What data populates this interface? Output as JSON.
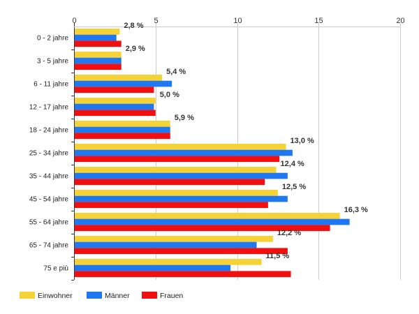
{
  "chart_data": {
    "type": "bar",
    "orientation": "horizontal",
    "categories": [
      "0 - 2 jahre",
      "3 - 5 jahre",
      "6 - 11 jahre",
      "12 - 17 jahre",
      "18 - 24 jahre",
      "25 - 34 jahre",
      "35 - 44 jahre",
      "45 - 54 jahre",
      "55 - 64 jahre",
      "65 - 74 jahre",
      "75 e più"
    ],
    "series": [
      {
        "name": "Einwohner",
        "color": "#f5d336",
        "values": [
          2.8,
          2.9,
          5.4,
          5.0,
          5.9,
          13.0,
          12.4,
          12.5,
          16.3,
          12.2,
          11.5
        ]
      },
      {
        "name": "Männer",
        "color": "#1f78f0",
        "values": [
          2.6,
          2.9,
          6.0,
          4.9,
          5.9,
          13.4,
          13.1,
          13.1,
          16.9,
          11.2,
          9.6
        ]
      },
      {
        "name": "Frauen",
        "color": "#f20f0f",
        "values": [
          2.9,
          2.9,
          4.9,
          5.0,
          5.9,
          12.6,
          11.7,
          11.9,
          15.7,
          13.1,
          13.3
        ]
      }
    ],
    "data_labels": [
      "2,8 %",
      "2,9 %",
      "5,4 %",
      "5,0 %",
      "5,9 %",
      "13,0 %",
      "12,4 %",
      "12,5 %",
      "16,3 %",
      "12,2 %",
      "11,5 %"
    ],
    "xlim": [
      0,
      20
    ],
    "x_ticks": [
      "0",
      "5",
      "10",
      "15",
      "20"
    ],
    "x_tick_values": [
      0,
      5,
      10,
      15,
      20
    ],
    "x_axis_position": "top",
    "grid": true,
    "legend_position": "bottom-left",
    "title": "",
    "xlabel": "",
    "ylabel": ""
  }
}
